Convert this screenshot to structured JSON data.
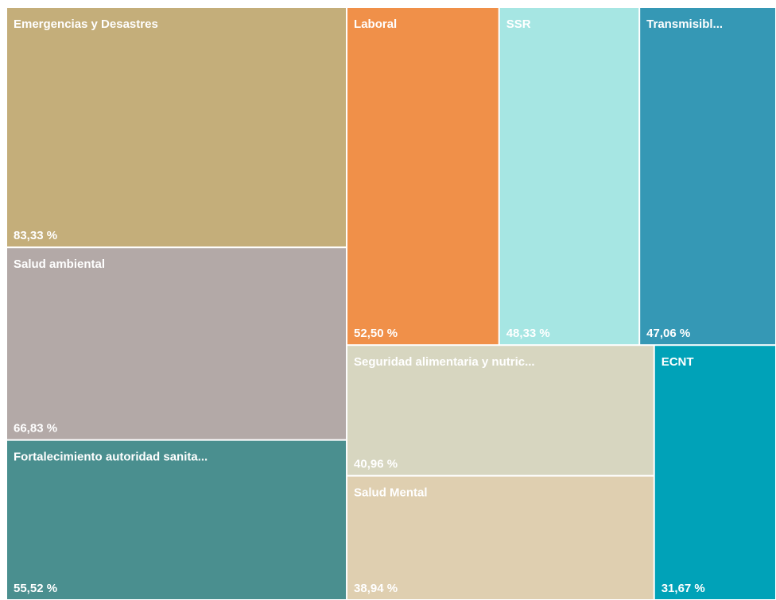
{
  "chart_data": {
    "type": "treemap",
    "categories": [
      "Emergencias y Desastres",
      "Salud ambiental",
      "Fortalecimiento autoridad sanita...",
      "Laboral",
      "SSR",
      "Transmisibl...",
      "Seguridad alimentaria y nutric...",
      "Salud Mental",
      "ECNT"
    ],
    "values": [
      83.33,
      66.83,
      55.52,
      52.5,
      48.33,
      47.06,
      40.96,
      38.94,
      31.67
    ],
    "value_labels": [
      "83,33 %",
      "66,83 %",
      "55,52 %",
      "52,50 %",
      "48,33 %",
      "47,06 %",
      "40,96 %",
      "38,94 %",
      "31,67 %"
    ],
    "colors": [
      "#c4ae7a",
      "#b3a9a7",
      "#4a8f8f",
      "#f09049",
      "#a6e6e3",
      "#3598b5",
      "#d7d6c0",
      "#dfcfb0",
      "#00a2b8"
    ]
  }
}
